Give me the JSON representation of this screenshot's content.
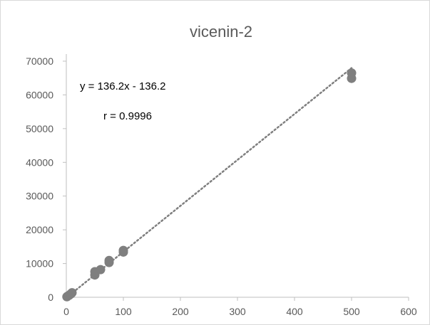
{
  "chart_data": {
    "type": "scatter",
    "title": "vicenin-2",
    "xlabel": "",
    "ylabel": "",
    "xlim": [
      0,
      600
    ],
    "ylim": [
      0,
      70000
    ],
    "x_ticks": [
      0,
      100,
      200,
      300,
      400,
      500,
      600
    ],
    "y_ticks": [
      0,
      10000,
      20000,
      30000,
      40000,
      50000,
      60000,
      70000
    ],
    "grid": false,
    "legend": "none",
    "series": [
      {
        "points": [
          {
            "x": 1,
            "y": 150
          },
          {
            "x": 2,
            "y": 300
          },
          {
            "x": 5,
            "y": 600
          },
          {
            "x": 8,
            "y": 1000
          },
          {
            "x": 10,
            "y": 1350
          },
          {
            "x": 50,
            "y": 6600
          },
          {
            "x": 50,
            "y": 7600
          },
          {
            "x": 60,
            "y": 8200
          },
          {
            "x": 75,
            "y": 10300
          },
          {
            "x": 75,
            "y": 10900
          },
          {
            "x": 100,
            "y": 13400
          },
          {
            "x": 100,
            "y": 13900
          },
          {
            "x": 500,
            "y": 64900
          },
          {
            "x": 500,
            "y": 66500
          }
        ]
      }
    ],
    "trendline": {
      "style": "dotted",
      "slope": 136.2,
      "intercept": -136.2,
      "x_range": [
        0,
        500
      ]
    },
    "annotations": {
      "equation": "y = 136.2x - 136.2",
      "r": "r = 0.9996"
    },
    "colors": {
      "marker": "#7f7f7f",
      "trendline": "#7f7f7f",
      "axis": "#bfbfbf",
      "text": "#595959",
      "annotation_text": "#000000"
    }
  }
}
